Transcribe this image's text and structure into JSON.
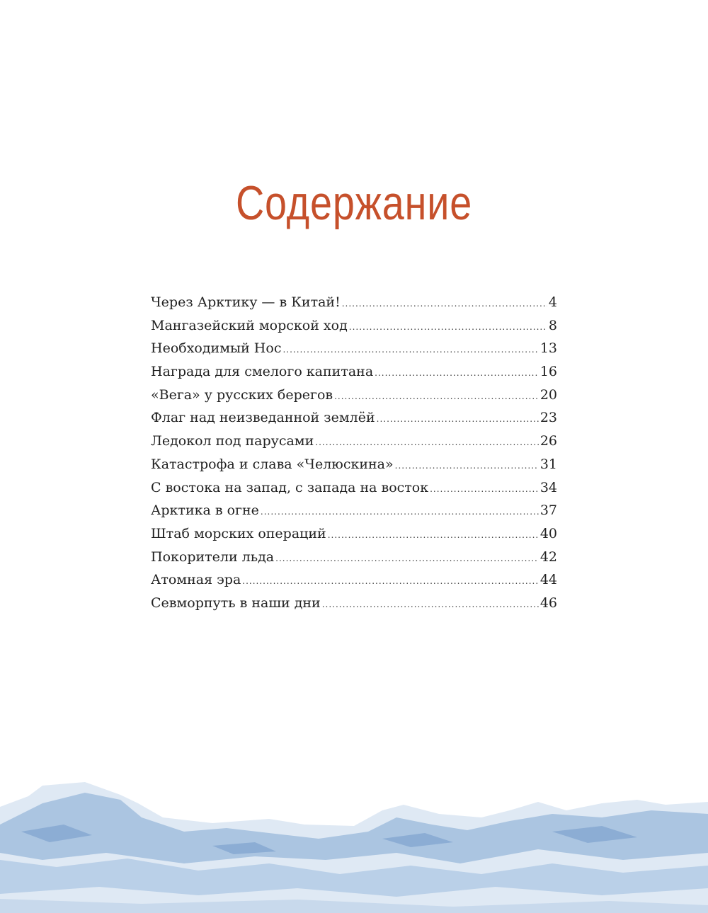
{
  "heading": "Содержание",
  "colors": {
    "heading": "#c6502b",
    "ice": "#8fb0d6"
  },
  "toc": [
    {
      "title": "Через Арктику — в Китай!",
      "page": "4"
    },
    {
      "title": "Мангазейский морской ход",
      "page": "8"
    },
    {
      "title": "Необходимый Нос",
      "page": "13"
    },
    {
      "title": "Награда для смелого капитана",
      "page": "16"
    },
    {
      "title": "«Вега» у русских берегов",
      "page": "20"
    },
    {
      "title": "Флаг над неизведанной землёй",
      "page": "23"
    },
    {
      "title": "Ледокол под парусами",
      "page": "26"
    },
    {
      "title": "Катастрофа и слава «Челюскина»",
      "page": "31"
    },
    {
      "title": "С востока на запад, с запада на восток",
      "page": "34"
    },
    {
      "title": "Арктика в огне",
      "page": "37"
    },
    {
      "title": "Штаб морских операций",
      "page": "40"
    },
    {
      "title": "Покорители льда",
      "page": "42"
    },
    {
      "title": "Атомная эра",
      "page": "44"
    },
    {
      "title": "Севморпуть в наши дни",
      "page": "46"
    }
  ]
}
